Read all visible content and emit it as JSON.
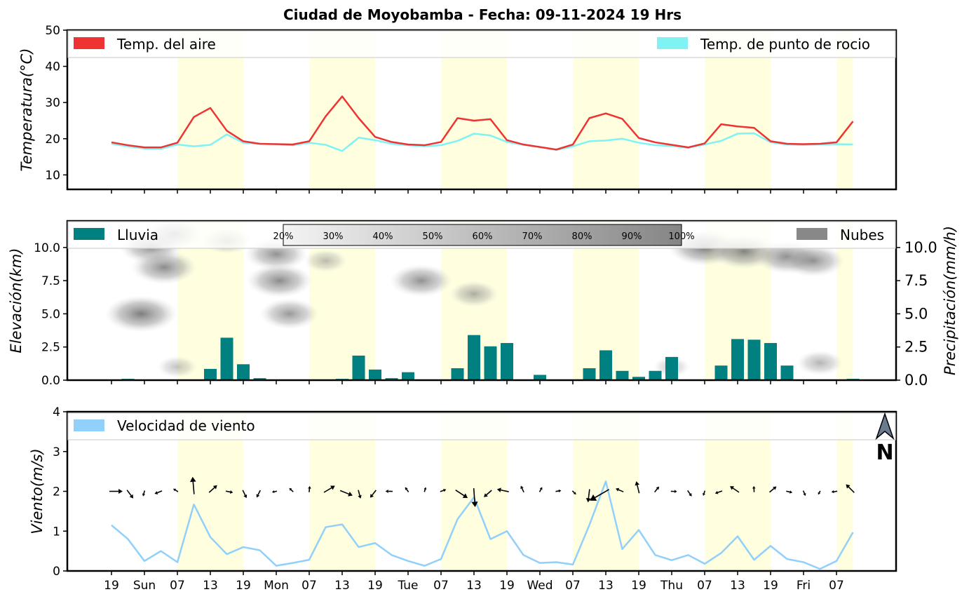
{
  "title": "Ciudad de Moyobamba   -   Fecha: 09-11-2024 19 Hrs",
  "colors": {
    "air": "#ee3333",
    "dew": "#7ff3f3",
    "rain": "#008080",
    "wind": "#90d0fa",
    "daylight": "#ffffe0",
    "clouds": "#888888"
  },
  "x_ticks": [
    "19",
    "Sun",
    "07",
    "13",
    "19",
    "Mon",
    "07",
    "13",
    "19",
    "Tue",
    "07",
    "13",
    "19",
    "Wed",
    "07",
    "13",
    "19",
    "Thu",
    "07",
    "13",
    "19",
    "Fri",
    "07"
  ],
  "daylight_bands": [
    [
      2,
      4
    ],
    [
      6,
      8
    ],
    [
      10,
      12
    ],
    [
      14,
      16
    ],
    [
      18,
      20
    ],
    [
      22,
      22.5
    ]
  ],
  "chart_data": [
    {
      "type": "line",
      "ylabel": "Temperatura(°C)",
      "ylim": [
        6,
        50
      ],
      "yticks": [
        10,
        20,
        30,
        40,
        50
      ],
      "legend": [
        "Temp. del aire",
        "Temp. de punto de rocio"
      ],
      "series": [
        {
          "name": "Temp. del aire",
          "values": [
            19.0,
            18.2,
            17.6,
            17.6,
            18.9,
            26.0,
            28.5,
            22.2,
            19.3,
            18.6,
            18.5,
            18.4,
            19.3,
            26.2,
            31.7,
            25.7,
            20.5,
            19.1,
            18.4,
            18.2,
            19.1,
            25.7,
            25.0,
            25.4,
            19.6,
            18.4,
            17.7,
            17.0,
            18.4,
            25.7,
            27.0,
            25.5,
            20.2,
            19.0,
            18.3,
            17.6,
            18.7,
            24.0,
            23.4,
            23.0,
            19.3,
            18.6,
            18.5,
            18.6,
            19.0,
            24.8
          ]
        },
        {
          "name": "Temp. de punto de rocio",
          "values": [
            18.6,
            17.9,
            17.3,
            17.2,
            18.4,
            17.9,
            18.3,
            21.2,
            18.9,
            18.6,
            18.5,
            18.2,
            18.9,
            18.3,
            16.6,
            20.3,
            19.6,
            18.6,
            18.2,
            17.9,
            18.2,
            19.4,
            21.4,
            20.9,
            19.1,
            18.3,
            17.7,
            16.9,
            17.9,
            19.3,
            19.5,
            20.0,
            18.9,
            18.2,
            18.0,
            17.5,
            18.4,
            19.4,
            21.4,
            21.5,
            19.0,
            18.4,
            18.3,
            18.4,
            18.5,
            18.4
          ]
        }
      ]
    },
    {
      "type": "bar",
      "ylabel": "Elevación(km)",
      "ylabel_right": "Precipitación(mm/h)",
      "ylim": [
        0,
        12
      ],
      "yticks": [
        0.0,
        2.5,
        5.0,
        7.5,
        10.0
      ],
      "legend": [
        "Lluvia",
        "Nubes"
      ],
      "colorbar": [
        "20%",
        "30%",
        "40%",
        "50%",
        "60%",
        "70%",
        "80%",
        "90%",
        "100%"
      ],
      "precip_values": [
        0,
        0.1,
        0,
        0,
        0,
        0,
        0.85,
        3.2,
        1.2,
        0.15,
        0,
        0,
        0,
        0,
        0.1,
        1.85,
        0.8,
        0.15,
        0.6,
        0,
        0,
        0.9,
        3.4,
        2.55,
        2.8,
        0,
        0.4,
        0,
        0,
        0.9,
        2.25,
        0.7,
        0.25,
        0.7,
        1.75,
        0,
        0,
        1.1,
        3.1,
        3.05,
        2.8,
        1.1,
        0.05,
        0,
        0,
        0.1
      ],
      "clouds": [
        {
          "t": 1.2,
          "z": 10.0,
          "cover": 0.55
        },
        {
          "t": 1.6,
          "z": 8.5,
          "cover": 0.6
        },
        {
          "t": 1.9,
          "z": 11.0,
          "cover": 0.45
        },
        {
          "t": 0.9,
          "z": 5.0,
          "cover": 0.7
        },
        {
          "t": 3.5,
          "z": 10.5,
          "cover": 0.35
        },
        {
          "t": 5.0,
          "z": 9.5,
          "cover": 0.55
        },
        {
          "t": 5.1,
          "z": 7.5,
          "cover": 0.6
        },
        {
          "t": 5.4,
          "z": 5.0,
          "cover": 0.5
        },
        {
          "t": 6.5,
          "z": 9.0,
          "cover": 0.25
        },
        {
          "t": 9.4,
          "z": 7.5,
          "cover": 0.55
        },
        {
          "t": 11.0,
          "z": 6.5,
          "cover": 0.35
        },
        {
          "t": 18.0,
          "z": 10.0,
          "cover": 0.7
        },
        {
          "t": 19.2,
          "z": 9.7,
          "cover": 0.65
        },
        {
          "t": 20.5,
          "z": 9.3,
          "cover": 0.6
        },
        {
          "t": 21.3,
          "z": 9.0,
          "cover": 0.55
        },
        {
          "t": 21.5,
          "z": 1.3,
          "cover": 0.3
        },
        {
          "t": 2.0,
          "z": 1.0,
          "cover": 0.2
        },
        {
          "t": 17.0,
          "z": 1.0,
          "cover": 0.15
        }
      ]
    },
    {
      "type": "line",
      "ylabel": "Viento(m/s)",
      "ylim": [
        0,
        4
      ],
      "yticks": [
        0,
        1,
        2,
        3,
        4
      ],
      "legend": [
        "Velocidad de viento"
      ],
      "north_label": "N",
      "series": [
        {
          "name": "Velocidad de viento",
          "values": [
            1.15,
            0.8,
            0.25,
            0.5,
            0.22,
            1.67,
            0.85,
            0.42,
            0.6,
            0.52,
            0.13,
            0.2,
            0.28,
            1.1,
            1.17,
            0.6,
            0.7,
            0.4,
            0.25,
            0.13,
            0.3,
            1.3,
            1.85,
            0.8,
            1.0,
            0.4,
            0.2,
            0.22,
            0.16,
            1.15,
            2.25,
            0.55,
            1.03,
            0.4,
            0.27,
            0.4,
            0.18,
            0.45,
            0.87,
            0.28,
            0.63,
            0.3,
            0.22,
            0.05,
            0.25,
            0.97
          ]
        }
      ]
    }
  ]
}
